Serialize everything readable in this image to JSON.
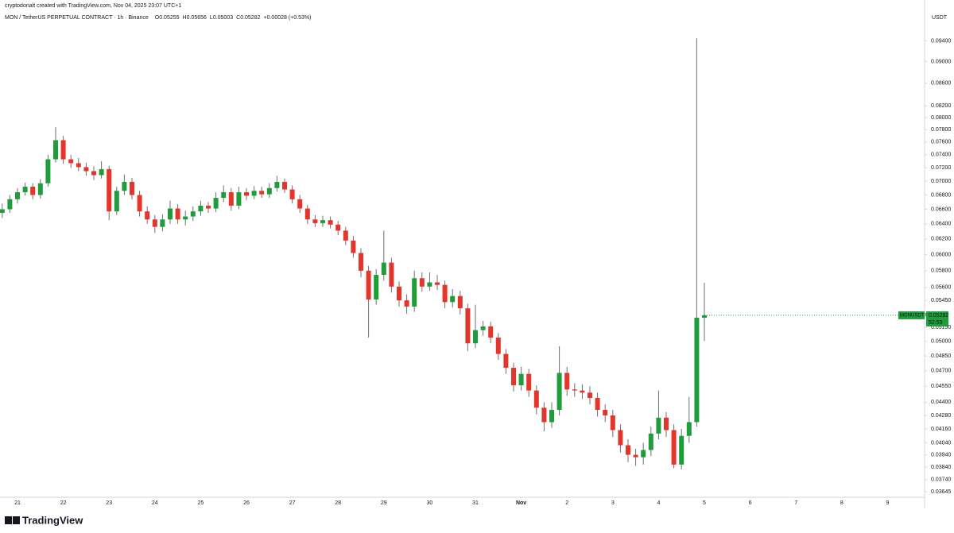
{
  "header": {
    "attribution": "cryptodonalt created with TradingView.com, Nov 04, 2025 23:07 UTC+1",
    "brand": "TradingView"
  },
  "chart_data": {
    "type": "candlestick",
    "title": "MON / TetherUS PERPETUAL CONTRACT · 1h · Binance",
    "ohlc_labels": [
      "O",
      "H",
      "L",
      "C"
    ],
    "change": "+0.00028 (+0.53%)",
    "currency": "USDT",
    "price_tag": {
      "symbol": "MONUSDT.P",
      "countdown": "52:59"
    },
    "up_color": "#1f9d3a",
    "down_color": "#e5352b",
    "wick_color": "#6f6f6f",
    "log_scale": true,
    "grid": false,
    "categories": [
      null,
      null,
      "21",
      null,
      null,
      null,
      null,
      null,
      "22",
      null,
      null,
      null,
      null,
      null,
      "23",
      null,
      null,
      null,
      null,
      null,
      "24",
      null,
      null,
      null,
      null,
      null,
      "25",
      null,
      null,
      null,
      null,
      null,
      "26",
      null,
      null,
      null,
      null,
      null,
      "27",
      null,
      null,
      null,
      null,
      null,
      "28",
      null,
      null,
      null,
      null,
      null,
      "29",
      null,
      null,
      null,
      null,
      null,
      "30",
      null,
      null,
      null,
      null,
      null,
      "31",
      null,
      null,
      null,
      null,
      null,
      "Nov",
      null,
      null,
      null,
      null,
      null,
      "2",
      null,
      null,
      null,
      null,
      null,
      "3",
      null,
      null,
      null,
      null,
      null,
      "4",
      null,
      null,
      null,
      null,
      null,
      "5",
      null,
      null,
      null,
      null,
      null,
      "6",
      null,
      null,
      null,
      null,
      null,
      "7",
      null,
      null,
      null,
      null,
      null,
      "8",
      null,
      null,
      null,
      null,
      null,
      "9",
      null,
      null,
      null,
      null,
      null
    ],
    "open": [
      0.0655,
      0.066,
      0.0674,
      0.0684,
      0.0692,
      0.068,
      0.0697,
      0.0733,
      0.0763,
      0.0733,
      0.0727,
      0.0721,
      0.0715,
      0.0709,
      0.0718,
      0.0657,
      0.0686,
      0.0699,
      0.068,
      0.0657,
      0.0646,
      0.0636,
      0.0646,
      0.0661,
      0.0646,
      0.065,
      0.0657,
      0.0665,
      0.0661,
      0.0676,
      0.0684,
      0.0665,
      0.0684,
      0.0679,
      0.0686,
      0.0681,
      0.069,
      0.0699,
      0.0688,
      0.0674,
      0.0661,
      0.0646,
      0.0641,
      0.0645,
      0.0639,
      0.0631,
      0.0618,
      0.0602,
      0.058,
      0.0546,
      0.0575,
      0.059,
      0.0561,
      0.0545,
      0.0538,
      0.0571,
      0.0561,
      0.0566,
      0.0563,
      0.0543,
      0.055,
      0.0536,
      0.0498,
      0.0512,
      0.0516,
      0.0504,
      0.0487,
      0.0473,
      0.0456,
      0.0467,
      0.0451,
      0.0435,
      0.0422,
      0.0433,
      0.0468,
      0.0452,
      0.0451,
      0.0449,
      0.0444,
      0.0433,
      0.0428,
      0.0415,
      0.0402,
      0.0394,
      0.0392,
      0.0398,
      0.0412,
      0.0426,
      0.0415,
      0.0386,
      0.041,
      0.0422,
      0.05255,
      null,
      null,
      null,
      null,
      null,
      null,
      null,
      null,
      null,
      null,
      null,
      null,
      null,
      null,
      null,
      null,
      null,
      null,
      null,
      null,
      null,
      null,
      null,
      null,
      null,
      null,
      null,
      null,
      null
    ],
    "high": [
      0.0668,
      0.068,
      0.069,
      0.0698,
      0.0697,
      0.0703,
      0.074,
      0.0784,
      0.077,
      0.074,
      0.0735,
      0.0728,
      0.0722,
      0.073,
      0.0723,
      0.0692,
      0.071,
      0.0705,
      0.0686,
      0.0664,
      0.0652,
      0.0653,
      0.0672,
      0.0667,
      0.0658,
      0.0664,
      0.0672,
      0.067,
      0.0684,
      0.0694,
      0.069,
      0.0692,
      0.069,
      0.0693,
      0.0692,
      0.0697,
      0.0708,
      0.0704,
      0.0694,
      0.068,
      0.0666,
      0.0652,
      0.0651,
      0.065,
      0.0644,
      0.0636,
      0.0624,
      0.0608,
      0.0586,
      0.0582,
      0.0631,
      0.0596,
      0.0567,
      0.0552,
      0.058,
      0.0578,
      0.0578,
      0.0575,
      0.0568,
      0.0558,
      0.0556,
      0.0541,
      0.054,
      0.0522,
      0.0521,
      0.0509,
      0.0492,
      0.0478,
      0.0474,
      0.0472,
      0.0456,
      0.044,
      0.044,
      0.0495,
      0.0474,
      0.0458,
      0.0457,
      0.0455,
      0.0449,
      0.0438,
      0.0433,
      0.042,
      0.0407,
      0.0399,
      0.0404,
      0.0418,
      0.0451,
      0.0431,
      0.042,
      0.0416,
      0.0445,
      0.0945,
      0.05656,
      null,
      null,
      null,
      null,
      null,
      null,
      null,
      null,
      null,
      null,
      null,
      null,
      null,
      null,
      null,
      null,
      null,
      null,
      null,
      null,
      null,
      null,
      null,
      null,
      null,
      null,
      null,
      null,
      null
    ],
    "low": [
      0.0648,
      0.0655,
      0.0668,
      0.0679,
      0.0674,
      0.0675,
      0.0692,
      0.0728,
      0.0726,
      0.072,
      0.0715,
      0.0708,
      0.0702,
      0.0704,
      0.0645,
      0.0652,
      0.068,
      0.0674,
      0.065,
      0.064,
      0.0628,
      0.063,
      0.064,
      0.064,
      0.0638,
      0.0644,
      0.0651,
      0.0655,
      0.0656,
      0.067,
      0.0658,
      0.066,
      0.0673,
      0.0674,
      0.0676,
      0.0676,
      0.0685,
      0.0683,
      0.0668,
      0.0655,
      0.064,
      0.0636,
      0.0636,
      0.0634,
      0.0625,
      0.0612,
      0.0596,
      0.0572,
      0.0504,
      0.054,
      0.0568,
      0.0554,
      0.0538,
      0.053,
      0.0532,
      0.0555,
      0.0556,
      0.0557,
      0.0536,
      0.0537,
      0.0529,
      0.049,
      0.0493,
      0.0506,
      0.0498,
      0.0481,
      0.0467,
      0.045,
      0.0451,
      0.0445,
      0.0429,
      0.0414,
      0.0417,
      0.0428,
      0.0446,
      0.0445,
      0.0443,
      0.0438,
      0.0427,
      0.0422,
      0.0409,
      0.0396,
      0.0388,
      0.0385,
      0.0386,
      0.0393,
      0.0407,
      0.0409,
      0.0383,
      0.0382,
      0.0404,
      0.0418,
      0.05003,
      null,
      null,
      null,
      null,
      null,
      null,
      null,
      null,
      null,
      null,
      null,
      null,
      null,
      null,
      null,
      null,
      null,
      null,
      null,
      null,
      null,
      null,
      null,
      null,
      null,
      null,
      null,
      null,
      null
    ],
    "close": [
      0.066,
      0.0674,
      0.0684,
      0.0692,
      0.068,
      0.0697,
      0.0733,
      0.0763,
      0.0733,
      0.0727,
      0.0721,
      0.0715,
      0.0709,
      0.0718,
      0.0657,
      0.0686,
      0.0699,
      0.068,
      0.0657,
      0.0646,
      0.0636,
      0.0646,
      0.0661,
      0.0646,
      0.065,
      0.0657,
      0.0665,
      0.0661,
      0.0676,
      0.0684,
      0.0665,
      0.0684,
      0.0679,
      0.0686,
      0.0681,
      0.069,
      0.0699,
      0.0688,
      0.0674,
      0.0661,
      0.0646,
      0.0641,
      0.0645,
      0.0639,
      0.0631,
      0.0618,
      0.0602,
      0.058,
      0.0546,
      0.0575,
      0.059,
      0.0561,
      0.0545,
      0.0538,
      0.0571,
      0.0561,
      0.0566,
      0.0563,
      0.0543,
      0.055,
      0.0536,
      0.0498,
      0.0512,
      0.0516,
      0.0504,
      0.0487,
      0.0473,
      0.0456,
      0.0467,
      0.0451,
      0.0435,
      0.0422,
      0.0433,
      0.0468,
      0.0452,
      0.0451,
      0.0449,
      0.0444,
      0.0433,
      0.0428,
      0.0415,
      0.0402,
      0.0394,
      0.0392,
      0.0398,
      0.0412,
      0.0426,
      0.0415,
      0.0386,
      0.041,
      0.0422,
      0.05255,
      0.05282,
      null,
      null,
      null,
      null,
      null,
      null,
      null,
      null,
      null,
      null,
      null,
      null,
      null,
      null,
      null,
      null,
      null,
      null,
      null,
      null,
      null,
      null,
      null,
      null,
      null,
      null,
      null,
      null,
      null
    ],
    "ylim": [
      0.0361,
      0.0999
    ],
    "yticks": [
      {
        "value": 0.094,
        "label": "0.09400"
      },
      {
        "value": 0.09,
        "label": "0.09000"
      },
      {
        "value": 0.086,
        "label": "0.08600"
      },
      {
        "value": 0.082,
        "label": "0.08200"
      },
      {
        "value": 0.08,
        "label": "0.08000"
      },
      {
        "value": 0.078,
        "label": "0.07800"
      },
      {
        "value": 0.076,
        "label": "0.07600"
      },
      {
        "value": 0.074,
        "label": "0.07400"
      },
      {
        "value": 0.072,
        "label": "0.07200"
      },
      {
        "value": 0.07,
        "label": "0.07000"
      },
      {
        "value": 0.068,
        "label": "0.06800"
      },
      {
        "value": 0.066,
        "label": "0.06600"
      },
      {
        "value": 0.064,
        "label": "0.06400"
      },
      {
        "value": 0.062,
        "label": "0.06200"
      },
      {
        "value": 0.06,
        "label": "0.06000"
      },
      {
        "value": 0.058,
        "label": "0.05800"
      },
      {
        "value": 0.056,
        "label": "0.05600"
      },
      {
        "value": 0.0545,
        "label": "0.05450"
      },
      {
        "value": 0.0515,
        "label": "0.05150"
      },
      {
        "value": 0.05,
        "label": "0.05000"
      },
      {
        "value": 0.0485,
        "label": "0.04850"
      },
      {
        "value": 0.047,
        "label": "0.04700"
      },
      {
        "value": 0.0455,
        "label": "0.04550"
      },
      {
        "value": 0.044,
        "label": "0.04400"
      },
      {
        "value": 0.0428,
        "label": "0.04280"
      },
      {
        "value": 0.0416,
        "label": "0.04160"
      },
      {
        "value": 0.0404,
        "label": "0.04040"
      },
      {
        "value": 0.0394,
        "label": "0.03940"
      },
      {
        "value": 0.0384,
        "label": "0.03840"
      },
      {
        "value": 0.0374,
        "label": "0.03740"
      },
      {
        "value": 0.03645,
        "label": "0.03645"
      }
    ]
  }
}
